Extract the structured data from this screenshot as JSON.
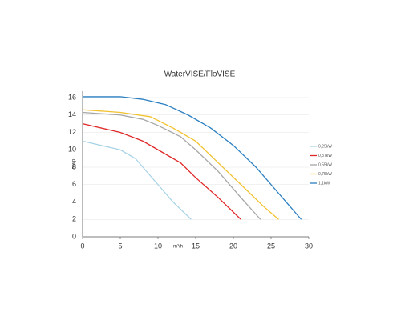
{
  "chart_data": {
    "type": "line",
    "title": "WaterVISE/FloVISE",
    "x_label": "m³/h",
    "y_label": "mwp",
    "xlim": [
      0,
      30
    ],
    "xticks": [
      0,
      5,
      10,
      15,
      20,
      25,
      30
    ],
    "ylim": [
      0,
      16
    ],
    "yticks": [
      0,
      2,
      4,
      6,
      8,
      10,
      12,
      14,
      16
    ],
    "grid": true,
    "series": [
      {
        "name": "0,25kW",
        "color": "#a9d4e8",
        "x": [
          0,
          5,
          7,
          10,
          12,
          14.4
        ],
        "values": [
          11,
          10,
          9,
          6,
          4,
          2
        ]
      },
      {
        "name": "0,37kW",
        "color": "#e02828",
        "x": [
          0,
          5,
          8,
          10,
          13,
          15,
          18,
          21
        ],
        "values": [
          13,
          12,
          11,
          10,
          8.5,
          6.8,
          4.5,
          2
        ]
      },
      {
        "name": "0,55kW",
        "color": "#a6a6a6",
        "x": [
          0,
          5,
          8,
          10,
          13,
          15,
          18,
          21,
          23.6
        ],
        "values": [
          14.3,
          14,
          13.5,
          12.8,
          11.5,
          10,
          7.5,
          4.5,
          2
        ]
      },
      {
        "name": "0,75kW",
        "color": "#f2c12e",
        "x": [
          0,
          5,
          9,
          12,
          15,
          18,
          21,
          24,
          26
        ],
        "values": [
          14.6,
          14.3,
          13.8,
          12.5,
          11,
          8.5,
          6,
          3.5,
          2
        ]
      },
      {
        "name": "1,1kW",
        "color": "#2a7fc1",
        "x": [
          0,
          5,
          8,
          11,
          14,
          17,
          20,
          23,
          26,
          29
        ],
        "values": [
          16.1,
          16.1,
          15.8,
          15.2,
          14,
          12.5,
          10.5,
          8,
          5,
          2
        ]
      }
    ]
  }
}
